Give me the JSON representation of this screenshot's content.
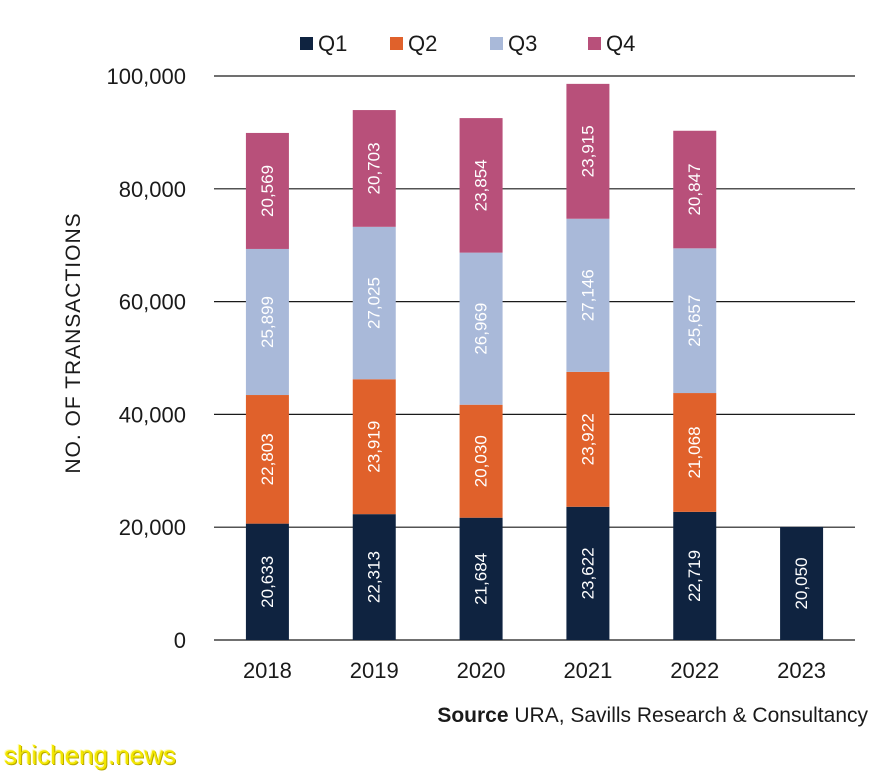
{
  "chart_data": {
    "type": "bar",
    "stacked": true,
    "categories": [
      "2018",
      "2019",
      "2020",
      "2021",
      "2022",
      "2023"
    ],
    "series": [
      {
        "name": "Q1",
        "color": "#0f2340",
        "values": [
          20633,
          22313,
          21684,
          23622,
          22719,
          20050
        ],
        "labels": [
          "20,633",
          "22,313",
          "21,684",
          "23,622",
          "22,719",
          "20,050"
        ]
      },
      {
        "name": "Q2",
        "color": "#e0612b",
        "values": [
          22803,
          23919,
          20030,
          23922,
          21068,
          null
        ],
        "labels": [
          "22,803",
          "23,919",
          "20,030",
          "23,922",
          "21,068",
          ""
        ]
      },
      {
        "name": "Q3",
        "color": "#a9b9d9",
        "values": [
          25899,
          27025,
          26969,
          27146,
          25657,
          null
        ],
        "labels": [
          "25,899",
          "27,025",
          "26,969",
          "27,146",
          "25,657",
          ""
        ]
      },
      {
        "name": "Q4",
        "color": "#b8507a",
        "values": [
          20569,
          20703,
          23854,
          23915,
          20847,
          null
        ],
        "labels": [
          "20,569",
          "20,703",
          "23,854",
          "23,915",
          "20,847",
          ""
        ]
      }
    ],
    "title": "",
    "xlabel": "",
    "ylabel": "NO. OF TRANSACTIONS",
    "ylim": [
      0,
      100000
    ],
    "yticks": [
      0,
      20000,
      40000,
      60000,
      80000,
      100000
    ],
    "ytick_labels": [
      "0",
      "20,000",
      "40,000",
      "60,000",
      "80,000",
      "100,000"
    ],
    "grid": "horizontal",
    "legend": "top"
  },
  "source": {
    "label": "Source",
    "text": "URA, Savills Research & Consultancy"
  },
  "watermark": "shicheng.news"
}
